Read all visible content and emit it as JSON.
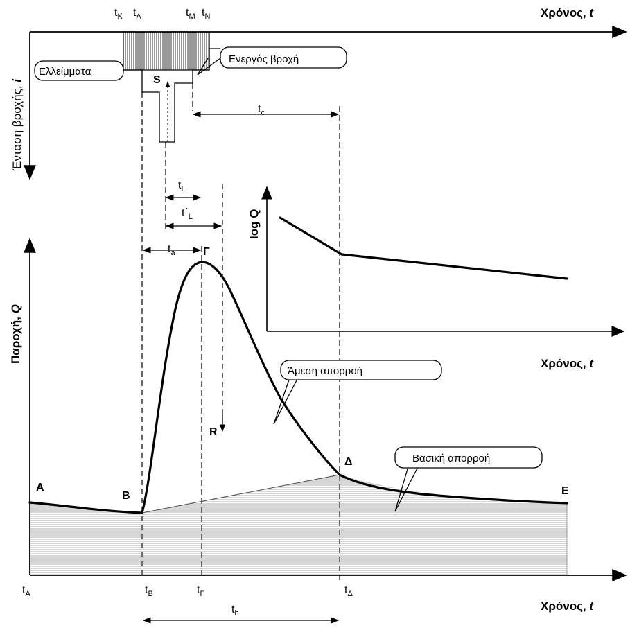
{
  "axes": {
    "time_top": "Χρόνος, ",
    "time_var": "t",
    "rain_axis": "Ένταση βροχής, ",
    "rain_var": "i",
    "flow_axis": "Παροχή, ",
    "flow_var": "Q",
    "time_mid": "Χρόνος, ",
    "time_bottom": "Χρόνος, ",
    "logq_axis": "log Q"
  },
  "callouts": {
    "deficits": "Ελλείμματα",
    "effective_rain": "Ενεργός βροχή",
    "direct_runoff": "Άμεση απορροή",
    "base_flow": "Βασική απορροή"
  },
  "points": {
    "A": "A",
    "B": "B",
    "G": "Γ",
    "D": "Δ",
    "E": "E",
    "S": "S",
    "R": "R"
  },
  "times": {
    "tK": {
      "base": "t",
      "sub": "K"
    },
    "tL": {
      "base": "t",
      "sub": "Λ"
    },
    "tM": {
      "base": "t",
      "sub": "M"
    },
    "tN": {
      "base": "t",
      "sub": "N"
    },
    "tc": {
      "base": "t",
      "sub": "c"
    },
    "tlag": {
      "base": "t",
      "sub": "L"
    },
    "tlag2": {
      "base": "t΄",
      "sub": "L"
    },
    "ta": {
      "base": "t",
      "sub": "a"
    },
    "tb": {
      "base": "t",
      "sub": "b"
    },
    "tA": {
      "base": "t",
      "sub": "A"
    },
    "tB": {
      "base": "t",
      "sub": "B"
    },
    "tG": {
      "base": "t",
      "sub": "Γ"
    },
    "tD": {
      "base": "t",
      "sub": "Δ"
    }
  }
}
